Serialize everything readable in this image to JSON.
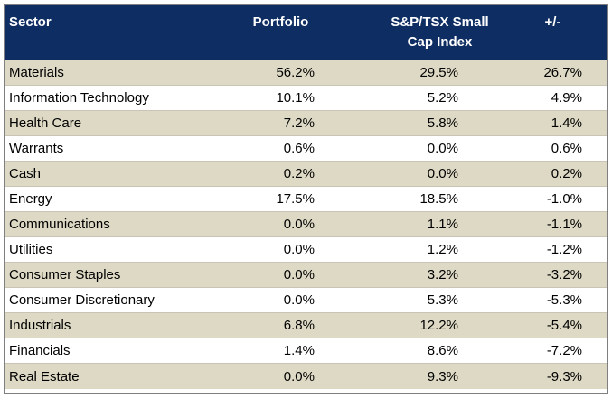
{
  "headers": {
    "sector": "Sector",
    "portfolio": "Portfolio",
    "index": "S&P/TSX Small Cap Index",
    "diff": "+/-"
  },
  "rows": [
    {
      "sector": "Materials",
      "portfolio": "56.2%",
      "index": "29.5%",
      "diff": "26.7%"
    },
    {
      "sector": "Information Technology",
      "portfolio": "10.1%",
      "index": "5.2%",
      "diff": "4.9%"
    },
    {
      "sector": "Health Care",
      "portfolio": "7.2%",
      "index": "5.8%",
      "diff": "1.4%"
    },
    {
      "sector": "Warrants",
      "portfolio": "0.6%",
      "index": "0.0%",
      "diff": "0.6%"
    },
    {
      "sector": "Cash",
      "portfolio": "0.2%",
      "index": "0.0%",
      "diff": "0.2%"
    },
    {
      "sector": "Energy",
      "portfolio": "17.5%",
      "index": "18.5%",
      "diff": "-1.0%"
    },
    {
      "sector": "Communications",
      "portfolio": "0.0%",
      "index": "1.1%",
      "diff": "-1.1%"
    },
    {
      "sector": "Utilities",
      "portfolio": "0.0%",
      "index": "1.2%",
      "diff": "-1.2%"
    },
    {
      "sector": "Consumer Staples",
      "portfolio": "0.0%",
      "index": "3.2%",
      "diff": "-3.2%"
    },
    {
      "sector": "Consumer Discretionary",
      "portfolio": "0.0%",
      "index": "5.3%",
      "diff": "-5.3%"
    },
    {
      "sector": "Industrials",
      "portfolio": "6.8%",
      "index": "12.2%",
      "diff": "-5.4%"
    },
    {
      "sector": "Financials",
      "portfolio": "1.4%",
      "index": "8.6%",
      "diff": "-7.2%"
    },
    {
      "sector": "Real Estate",
      "portfolio": "0.0%",
      "index": "9.3%",
      "diff": "-9.3%"
    }
  ],
  "colors": {
    "header_bg": "#0d2d63",
    "band_bg": "#ddd9c4"
  }
}
